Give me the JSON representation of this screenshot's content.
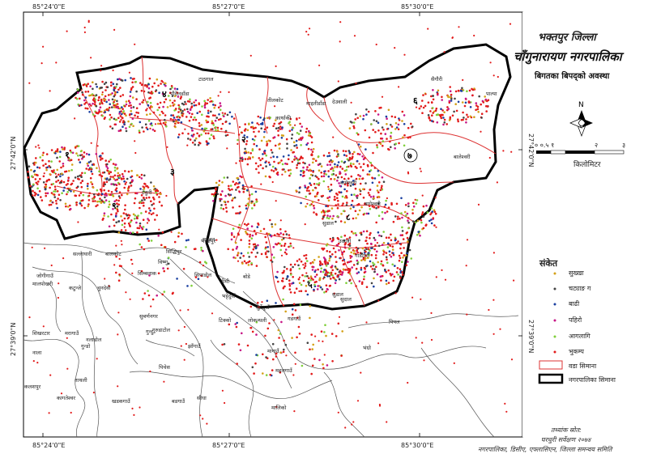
{
  "title": {
    "district": "भक्तपुर जिल्ला",
    "municipality": "चाँगुनारायण नगरपालिका",
    "subtitle": "बिगतका बिपद्को अवस्था"
  },
  "coords": {
    "top": [
      "85°24'0\"E",
      "85°27'0\"E",
      "85°30'0\"E"
    ],
    "bottom": [
      "85°24'0\"E",
      "85°27'0\"E",
      "85°30'0\"E"
    ],
    "left": [
      "27°42'0\"N",
      "27°39'0\"N"
    ],
    "right": [
      "27°42'0\"N",
      "27°39'0\"N"
    ]
  },
  "scale": {
    "ticks": [
      "० ०.५ १",
      "२",
      "३"
    ],
    "unit": "किलोमिटर"
  },
  "legend": {
    "title": "संकेत",
    "items": [
      {
        "label": "सुख्खा",
        "color": "#d4a017",
        "shape": "dot"
      },
      {
        "label": "चट्याङ ग",
        "color": "#444444",
        "shape": "dot"
      },
      {
        "label": "बाढी",
        "color": "#1a3fa0",
        "shape": "dot"
      },
      {
        "label": "पहिरो",
        "color": "#c71585",
        "shape": "dot"
      },
      {
        "label": "आगलागि",
        "color": "#7fcf3a",
        "shape": "dot"
      },
      {
        "label": "भुकम्प",
        "color": "#e21b1b",
        "shape": "dot"
      },
      {
        "label": "वडा सिमाना",
        "color": "#d33",
        "shape": "box-thin"
      },
      {
        "label": "नगरपालिका सिमाना",
        "color": "#000",
        "shape": "box-thick"
      }
    ]
  },
  "source": {
    "line1": "तथ्यांक स्रोत:",
    "line2": "घरधुरी सर्वेक्षण २०७४",
    "line3": "नगरपालिका, डिसीए, एफ्लासिएन, जिल्ला समन्वय समिति"
  },
  "wards": [
    "१",
    "२",
    "३",
    "४",
    "५",
    "६",
    "७",
    "८",
    "९"
  ],
  "places": [
    "टाठगाल",
    "तीलकोट",
    "माइतीडाँडा",
    "देउवाली",
    "सैगौरी",
    "पाल्पा",
    "बालेश्वरी",
    "पौंदेलडाँडा",
    "बामेश्वरी",
    "कार्थाकी",
    "सुडाल",
    "गाडेटारी",
    "उदाजी",
    "सल्लाघारी",
    "मधुवन",
    "मरागाउँ",
    "ताथली",
    "खडकगाउँ",
    "सिपाडोल",
    "बागेश्वरी",
    "सुडाल",
    "टेकुरी",
    "विष्णु",
    "भक्तपुर",
    "गुन्दु",
    "सुबर्णनगर",
    "जोगीगाउँ",
    "कटुन्जे",
    "चुनदेवी",
    "नलाडोल",
    "मालपोखरी",
    "शिखरटार",
    "नाला",
    "गुन्डो",
    "सिम्बलाक",
    "सिद्धिपुर",
    "बालकोट",
    "गुरुडाटोल",
    "बडगाउँ",
    "टिक्को",
    "झाँगाउँ",
    "पिपल",
    "मागाउँ",
    "भंग्रो",
    "महलगाउँ",
    "सुर्देदुवाँ",
    "भट्टेदुवाँ",
    "ठीमी",
    "बोडे",
    "कलशपुर",
    "कागतेश्वर",
    "पिचेस",
    "सुदाल",
    "लोकन्थली",
    "सीधा",
    "गडगाउँ",
    "मालिको"
  ]
}
